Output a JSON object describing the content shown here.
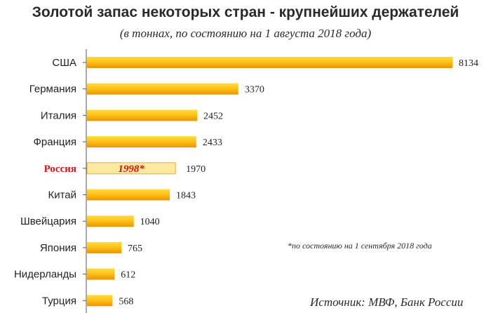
{
  "chart_data": {
    "type": "bar",
    "orientation": "horizontal",
    "title": "Золотой запас некоторых стран - крупнейших держателей",
    "subtitle": "(в тоннах, по состоянию на 1 августа 2018 года)",
    "categories": [
      "США",
      "Германия",
      "Италия",
      "Франция",
      "Россия",
      "Китай",
      "Швейцария",
      "Япония",
      "Нидерланды",
      "Турция"
    ],
    "values": [
      8134,
      3370,
      2452,
      2433,
      1970,
      1843,
      1040,
      765,
      612,
      568
    ],
    "highlight": {
      "category": "Россия",
      "inner_label": "1998*",
      "color": "#d01818"
    },
    "xlim": [
      0,
      8134
    ],
    "grid": false,
    "legend": "none",
    "colors": {
      "bar_top": "#ffdc40",
      "bar_mid": "#ffc21a",
      "bar_bottom": "#e89400",
      "highlight_fill": "#fbe9a0",
      "highlight_stroke": "#e0b23a"
    }
  },
  "annotations": {
    "note": "*по состоянию на 1 сентября 2018 года",
    "source": "Источник: МВФ, Банк России"
  }
}
